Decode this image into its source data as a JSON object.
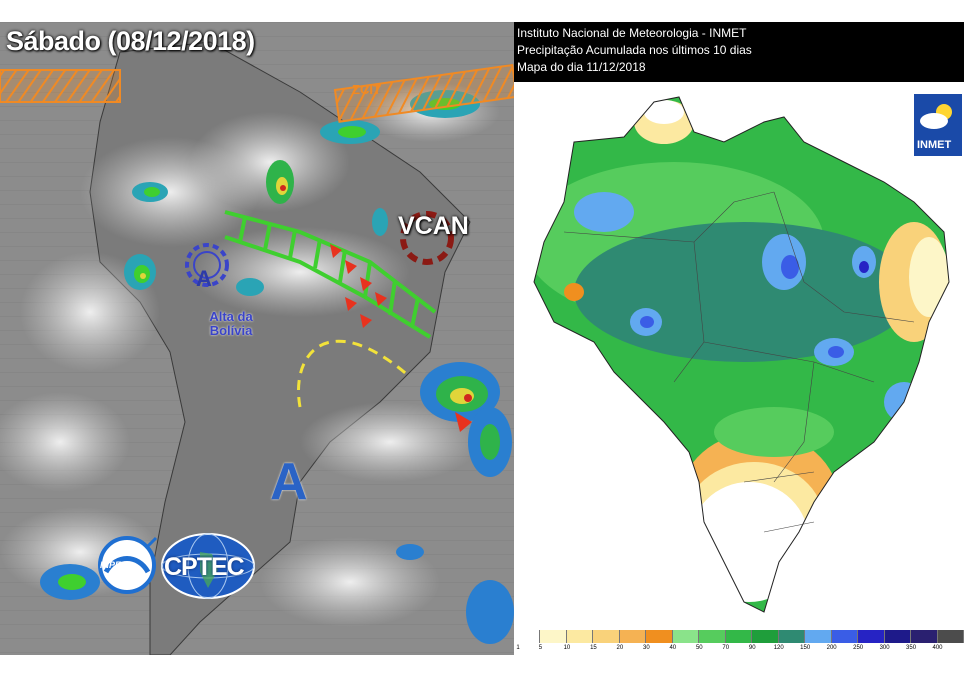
{
  "left_panel": {
    "title": "Sábado (08/12/2018)",
    "features": {
      "zcit": "ZCIT",
      "vcan": "VCAN",
      "high_pressure": "A",
      "bolivia_high_marker": "A",
      "bolivia_high_label_line1": "Alta da",
      "bolivia_high_label_line2": "Bolívia"
    },
    "logos": {
      "inpe": "INPE",
      "cptec": "CPTEC"
    },
    "colors": {
      "zcit": "#f08a24",
      "sacz_band": "#3fcf2f",
      "trough_arrows": "#e8321e",
      "vcan": "#8b1a14",
      "jet_dashed": "#f2e23a",
      "high": "#2a63c6"
    }
  },
  "right_panel": {
    "header_line1": "Instituto Nacional de Meteorologia - INMET",
    "header_line2": "Precipitação Acumulada nos últimos 10 dias",
    "header_line3_prefix": "Mapa do dia",
    "header_line3_date": "11/12/2018",
    "logo_text": "INMET",
    "legend": {
      "ticks": [
        "1",
        "5",
        "10",
        "15",
        "20",
        "30",
        "40",
        "50",
        "70",
        "90",
        "120",
        "150",
        "200",
        "250",
        "300",
        "350",
        "400"
      ],
      "colors": [
        "#ffffff",
        "#fdf6c8",
        "#fce9a1",
        "#f9d27a",
        "#f5b253",
        "#f08f1f",
        "#8ae38a",
        "#56cc5d",
        "#33b848",
        "#1f9e3b",
        "#2f8a72",
        "#62a9f0",
        "#3a5de6",
        "#2623c4",
        "#1e1a8a",
        "#2a2070",
        "#4c4c4c"
      ]
    }
  }
}
